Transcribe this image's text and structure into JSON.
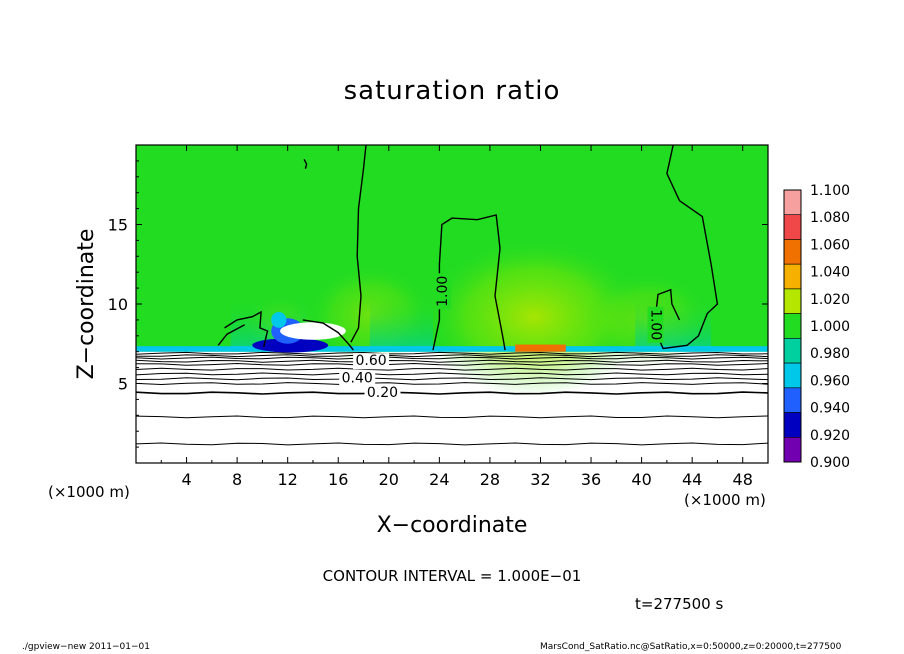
{
  "chart_data": {
    "type": "heatmap",
    "title": "saturation ratio",
    "xlabel": "X−coordinate",
    "ylabel": "Z−coordinate",
    "x_unit_left": "(×1000 m)",
    "x_unit_right": "(×1000 m)",
    "xlim": [
      0,
      50
    ],
    "ylim": [
      0,
      20
    ],
    "x_ticks": [
      4,
      8,
      12,
      16,
      20,
      24,
      28,
      32,
      36,
      40,
      44,
      48
    ],
    "y_ticks": [
      5,
      10,
      15
    ],
    "colorbar": {
      "levels": [
        1.1,
        1.08,
        1.06,
        1.04,
        1.02,
        1.0,
        0.98,
        0.96,
        0.94,
        0.92,
        0.9
      ],
      "labels": [
        "1.100",
        "1.080",
        "1.060",
        "1.040",
        "1.020",
        "1.000",
        "0.980",
        "0.960",
        "0.940",
        "0.920",
        "0.900"
      ],
      "colors": [
        "#f7a0a0",
        "#f04848",
        "#f07000",
        "#f5b000",
        "#b4e600",
        "#22dc22",
        "#00d0a0",
        "#00c8e8",
        "#2060ff",
        "#0000c0",
        "#7000b0"
      ]
    },
    "contour_levels_labeled": [
      {
        "level": "0.20",
        "x": 19.5,
        "z": 4.4
      },
      {
        "level": "0.40",
        "x": 17.5,
        "z": 5.3
      },
      {
        "level": "0.60",
        "x": 18.6,
        "z": 6.4
      },
      {
        "level": "1.00",
        "x": 24.3,
        "z": 10.8
      },
      {
        "level": "1.00",
        "x": 41.1,
        "z": 8.7
      }
    ],
    "surface_z": 7.0,
    "contour_interval_text": "CONTOUR INTERVAL = 1.000E−01",
    "time_text": "t=277500 s"
  },
  "footer": {
    "left": "./gpview−new   2011−01−01",
    "right": "MarsCond_SatRatio.nc@SatRatio,x=0:50000,z=0:20000,t=277500"
  }
}
